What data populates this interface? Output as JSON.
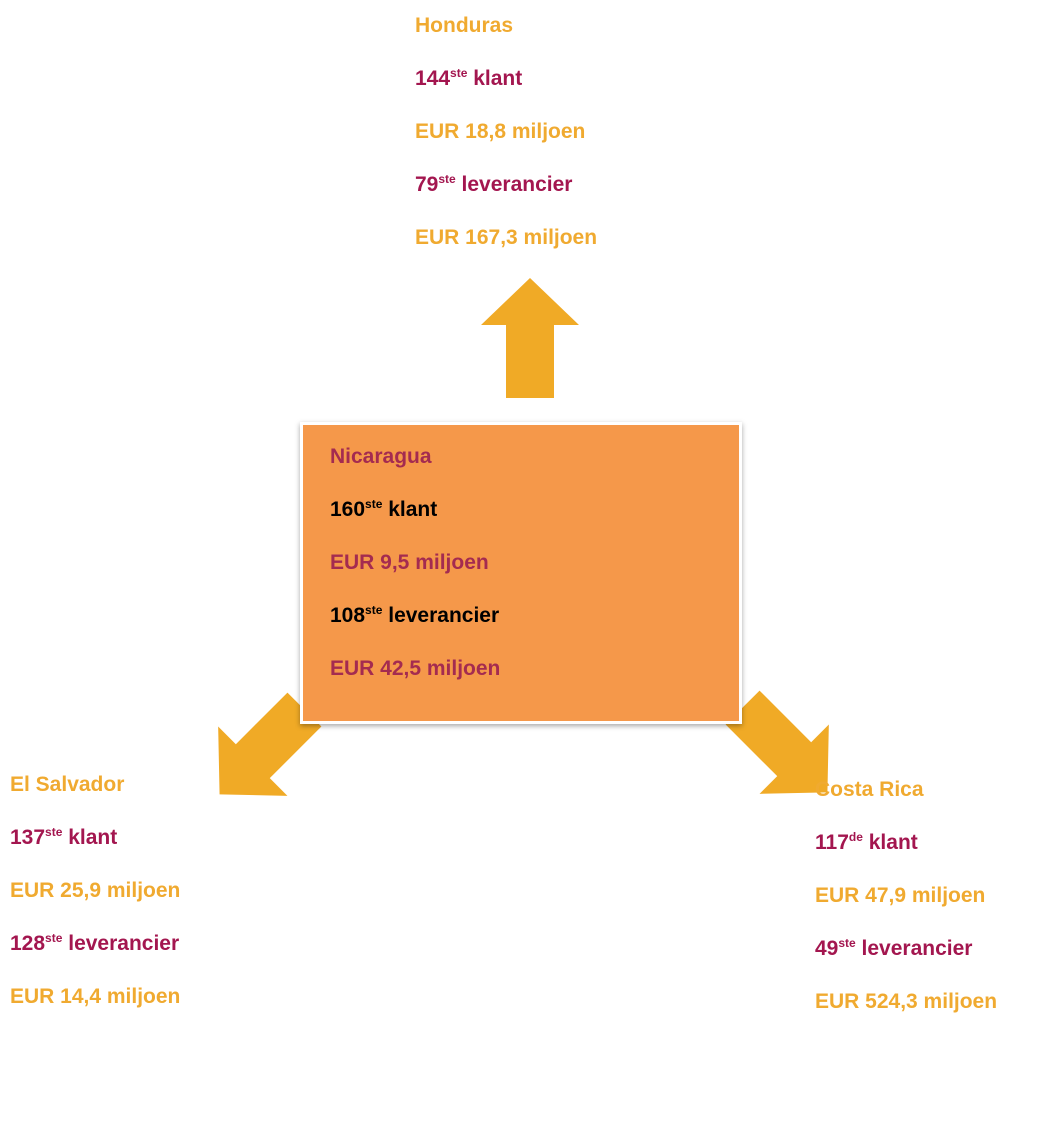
{
  "nodes": [
    {
      "name": "Honduras",
      "client": {
        "rank": "144",
        "suffix": "ste",
        "label": "klant"
      },
      "client_value": "EUR 18,8 miljoen",
      "supplier": {
        "rank": "79",
        "suffix": "ste",
        "label": "leverancier"
      },
      "supplier_value": "EUR 167,3 miljoen"
    },
    {
      "name": "Nicaragua",
      "client": {
        "rank": "160",
        "suffix": "ste",
        "label": "klant"
      },
      "client_value": "EUR 9,5 miljoen",
      "supplier": {
        "rank": "108",
        "suffix": "ste",
        "label": "leverancier"
      },
      "supplier_value": "EUR 42,5 miljoen"
    },
    {
      "name": "El Salvador",
      "client": {
        "rank": "137",
        "suffix": "ste",
        "label": "klant"
      },
      "client_value": "EUR 25,9 miljoen",
      "supplier": {
        "rank": "128",
        "suffix": "ste",
        "label": "leverancier"
      },
      "supplier_value": "EUR 14,4 miljoen"
    },
    {
      "name": "Costa Rica",
      "client": {
        "rank": "117",
        "suffix": "de",
        "label": "klant"
      },
      "client_value": "EUR 47,9 miljoen",
      "supplier": {
        "rank": "49",
        "suffix": "ste",
        "label": "leverancier"
      },
      "supplier_value": "EUR 524,3 miljoen"
    }
  ]
}
